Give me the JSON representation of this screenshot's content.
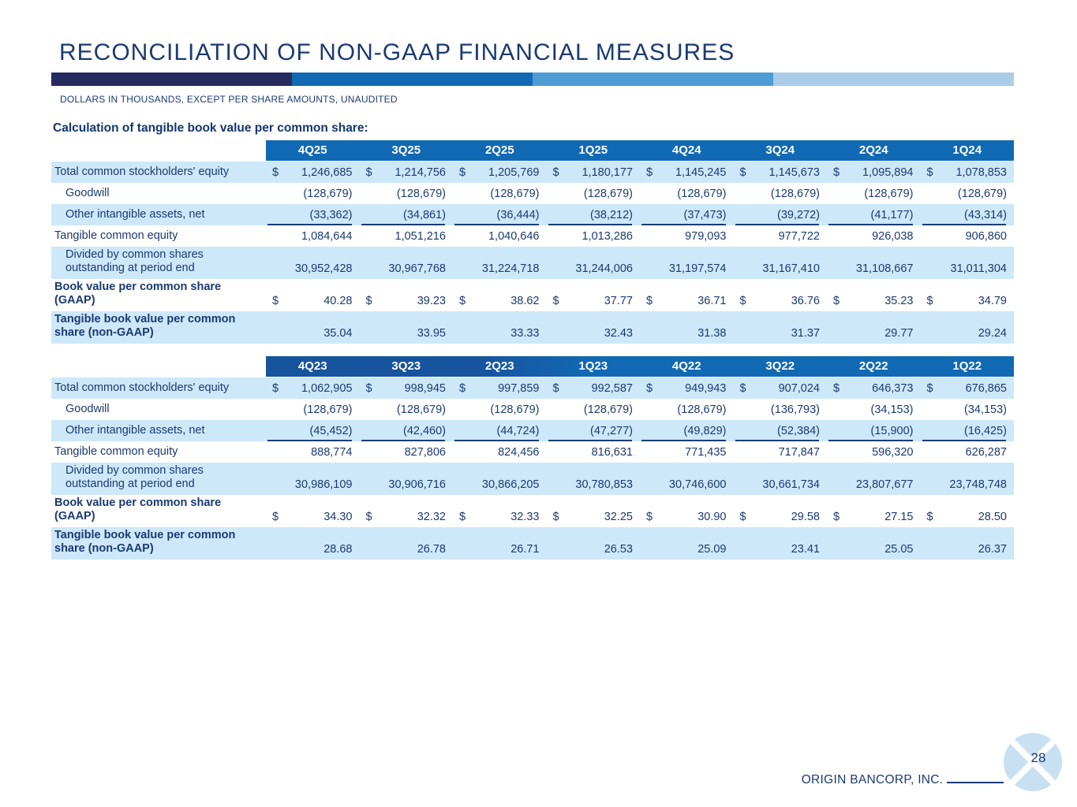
{
  "slide": {
    "title": "RECONCILIATION OF NON-GAAP FINANCIAL MEASURES",
    "subtitle": "DOLLARS IN THOUSANDS, EXCEPT PER SHARE AMOUNTS, UNAUDITED",
    "section_heading": "Calculation of tangible book value per common share:",
    "footer": {
      "company": "ORIGIN BANCORP, INC.",
      "page_number": "28"
    },
    "divider_colors": [
      "#262c60",
      "#1169b4",
      "#4d9cd4",
      "#a9cde9"
    ],
    "colors": {
      "header_blue": "#1169b4",
      "header_blue_dark": "#17549e",
      "row_alt": "#cde8f9",
      "text_navy": "#1b3a70",
      "line_navy": "#1c3c74",
      "logo_blue": "#c9e0f2",
      "title_navy": "#1b3a70"
    }
  },
  "tables": [
    {
      "columns": [
        "4Q25",
        "3Q25",
        "2Q25",
        "1Q25",
        "4Q24",
        "3Q24",
        "2Q24",
        "1Q24"
      ],
      "rows": [
        {
          "label": "Total common stockholders' equity",
          "indent": false,
          "bold": false,
          "dollar": true,
          "underline": false,
          "values": [
            "1,246,685",
            "1,214,756",
            "1,205,769",
            "1,180,177",
            "1,145,245",
            "1,145,673",
            "1,095,894",
            "1,078,853"
          ]
        },
        {
          "label": "Goodwill",
          "indent": true,
          "bold": false,
          "dollar": false,
          "underline": false,
          "values": [
            "(128,679)",
            "(128,679)",
            "(128,679)",
            "(128,679)",
            "(128,679)",
            "(128,679)",
            "(128,679)",
            "(128,679)"
          ]
        },
        {
          "label": "Other intangible assets, net",
          "indent": true,
          "bold": false,
          "dollar": false,
          "underline": true,
          "values": [
            "(33,362)",
            "(34,861)",
            "(36,444)",
            "(38,212)",
            "(37,473)",
            "(39,272)",
            "(41,177)",
            "(43,314)"
          ]
        },
        {
          "label": "Tangible common equity",
          "indent": false,
          "bold": false,
          "dollar": false,
          "underline": false,
          "values": [
            "1,084,644",
            "1,051,216",
            "1,040,646",
            "1,013,286",
            "979,093",
            "977,722",
            "926,038",
            "906,860"
          ]
        },
        {
          "label": "Divided by common shares outstanding at period end",
          "indent": true,
          "bold": false,
          "dollar": false,
          "underline": false,
          "values": [
            "30,952,428",
            "30,967,768",
            "31,224,718",
            "31,244,006",
            "31,197,574",
            "31,167,410",
            "31,108,667",
            "31,011,304"
          ]
        },
        {
          "label": "Book value per common share (GAAP)",
          "indent": false,
          "bold": true,
          "dollar": true,
          "underline": false,
          "values": [
            "40.28",
            "39.23",
            "38.62",
            "37.77",
            "36.71",
            "36.76",
            "35.23",
            "34.79"
          ]
        },
        {
          "label": "Tangible book value per common share (non-GAAP)",
          "indent": false,
          "bold": true,
          "dollar": false,
          "underline": false,
          "values": [
            "35.04",
            "33.95",
            "33.33",
            "32.43",
            "31.38",
            "31.37",
            "29.77",
            "29.24"
          ]
        }
      ]
    },
    {
      "columns": [
        "4Q23",
        "3Q23",
        "2Q23",
        "1Q23",
        "4Q22",
        "3Q22",
        "2Q22",
        "1Q22"
      ],
      "rows": [
        {
          "label": "Total common stockholders' equity",
          "indent": false,
          "bold": false,
          "dollar": true,
          "underline": false,
          "values": [
            "1,062,905",
            "998,945",
            "997,859",
            "992,587",
            "949,943",
            "907,024",
            "646,373",
            "676,865"
          ]
        },
        {
          "label": "Goodwill",
          "indent": true,
          "bold": false,
          "dollar": false,
          "underline": false,
          "values": [
            "(128,679)",
            "(128,679)",
            "(128,679)",
            "(128,679)",
            "(128,679)",
            "(136,793)",
            "(34,153)",
            "(34,153)"
          ]
        },
        {
          "label": "Other intangible assets, net",
          "indent": true,
          "bold": false,
          "dollar": false,
          "underline": true,
          "values": [
            "(45,452)",
            "(42,460)",
            "(44,724)",
            "(47,277)",
            "(49,829)",
            "(52,384)",
            "(15,900)",
            "(16,425)"
          ]
        },
        {
          "label": "Tangible common equity",
          "indent": false,
          "bold": false,
          "dollar": false,
          "underline": false,
          "values": [
            "888,774",
            "827,806",
            "824,456",
            "816,631",
            "771,435",
            "717,847",
            "596,320",
            "626,287"
          ]
        },
        {
          "label": "Divided by common shares outstanding at period end",
          "indent": true,
          "bold": false,
          "dollar": false,
          "underline": false,
          "values": [
            "30,986,109",
            "30,906,716",
            "30,866,205",
            "30,780,853",
            "30,746,600",
            "30,661,734",
            "23,807,677",
            "23,748,748"
          ]
        },
        {
          "label": "Book value per common share (GAAP)",
          "indent": false,
          "bold": true,
          "dollar": true,
          "underline": false,
          "values": [
            "34.30",
            "32.32",
            "32.33",
            "32.25",
            "30.90",
            "29.58",
            "27.15",
            "28.50"
          ]
        },
        {
          "label": "Tangible book value per common share (non-GAAP)",
          "indent": false,
          "bold": true,
          "dollar": false,
          "underline": false,
          "values": [
            "28.68",
            "26.78",
            "26.71",
            "26.53",
            "25.09",
            "23.41",
            "25.05",
            "26.37"
          ]
        }
      ]
    }
  ]
}
